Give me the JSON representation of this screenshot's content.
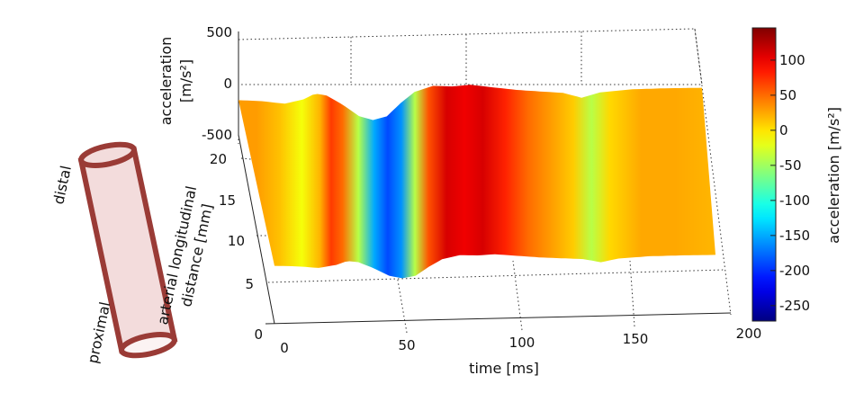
{
  "chart_data": {
    "type": "surface",
    "title": "",
    "xlabel": "time [ms]",
    "ylabel": "arterial longitudinal distance [mm]",
    "zlabel": "acceleration [m/s²]",
    "zlabel_line1": "acceleration",
    "zlabel_line2": "[m/s²]",
    "ylabel_line1": "arterial longitudinal",
    "ylabel_line2": "distance [mm]",
    "xlim": [
      0,
      200
    ],
    "ylim": [
      0,
      22
    ],
    "zlim": [
      -500,
      500
    ],
    "x_ticks": [
      "0",
      "50",
      "100",
      "150",
      "200"
    ],
    "y_ticks": [
      "0",
      "5",
      "10",
      "15",
      "20"
    ],
    "z_ticks": [
      "500",
      "0",
      "-500"
    ],
    "grid": true,
    "profile": {
      "time_ms": [
        0,
        10,
        20,
        28,
        33,
        38,
        45,
        52,
        58,
        64,
        70,
        76,
        84,
        92,
        100,
        110,
        120,
        130,
        140,
        148,
        156,
        170,
        185,
        200
      ],
      "acceleration": [
        30,
        15,
        -15,
        20,
        70,
        50,
        -40,
        -150,
        -190,
        -160,
        -40,
        60,
        110,
        100,
        110,
        80,
        50,
        30,
        10,
        -40,
        5,
        25,
        25,
        20
      ]
    },
    "colorbar": {
      "label": "acceleration [m/s²]",
      "range": [
        -272,
        146
      ],
      "ticks": [
        "100",
        "50",
        "0",
        "-50",
        "-100",
        "-150",
        "-200",
        "-250"
      ],
      "tick_values": [
        100,
        50,
        0,
        -50,
        -100,
        -150,
        -200,
        -250
      ],
      "colormap": "jet"
    }
  },
  "illustration": {
    "distal_label": "distal",
    "proximal_label": "proximal",
    "vessel_fill": "#f3dcdc",
    "vessel_stroke": "#9a3b36"
  }
}
